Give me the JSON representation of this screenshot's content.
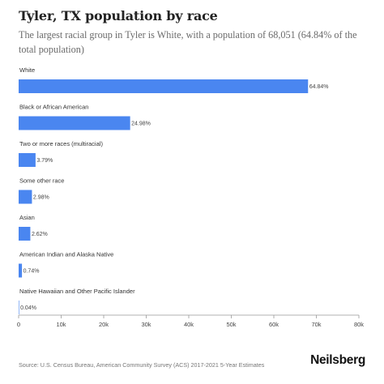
{
  "header": {
    "title": "Tyler, TX population by race",
    "subtitle": "The largest racial group in Tyler is White, with a population of 68,051 (64.84% of the total population)"
  },
  "chart_data": {
    "type": "bar",
    "orientation": "horizontal",
    "categories": [
      "White",
      "Black or African American",
      "Two or more races (multiracial)",
      "Some other race",
      "Asian",
      "American Indian and Alaska Native",
      "Native Hawaiian and Other Pacific Islander"
    ],
    "values": [
      68051,
      26220,
      3980,
      3130,
      2750,
      780,
      42
    ],
    "data_labels": [
      "64.84%",
      "24.98%",
      "3.79%",
      "2.98%",
      "2.62%",
      "0.74%",
      "0.04%"
    ],
    "xlim": [
      0,
      80000
    ],
    "xticks": [
      0,
      10000,
      20000,
      30000,
      40000,
      50000,
      60000,
      70000,
      80000
    ],
    "xtick_labels": [
      "0",
      "10k",
      "20k",
      "30k",
      "40k",
      "50k",
      "60k",
      "70k",
      "80k"
    ],
    "grid": false,
    "legend": "none",
    "bar_color": "#4a86f0"
  },
  "footer": {
    "source": "Source: U.S. Census Bureau, American Community Survey (ACS) 2017-2021 5-Year Estimates",
    "brand": "Neilsberg"
  }
}
